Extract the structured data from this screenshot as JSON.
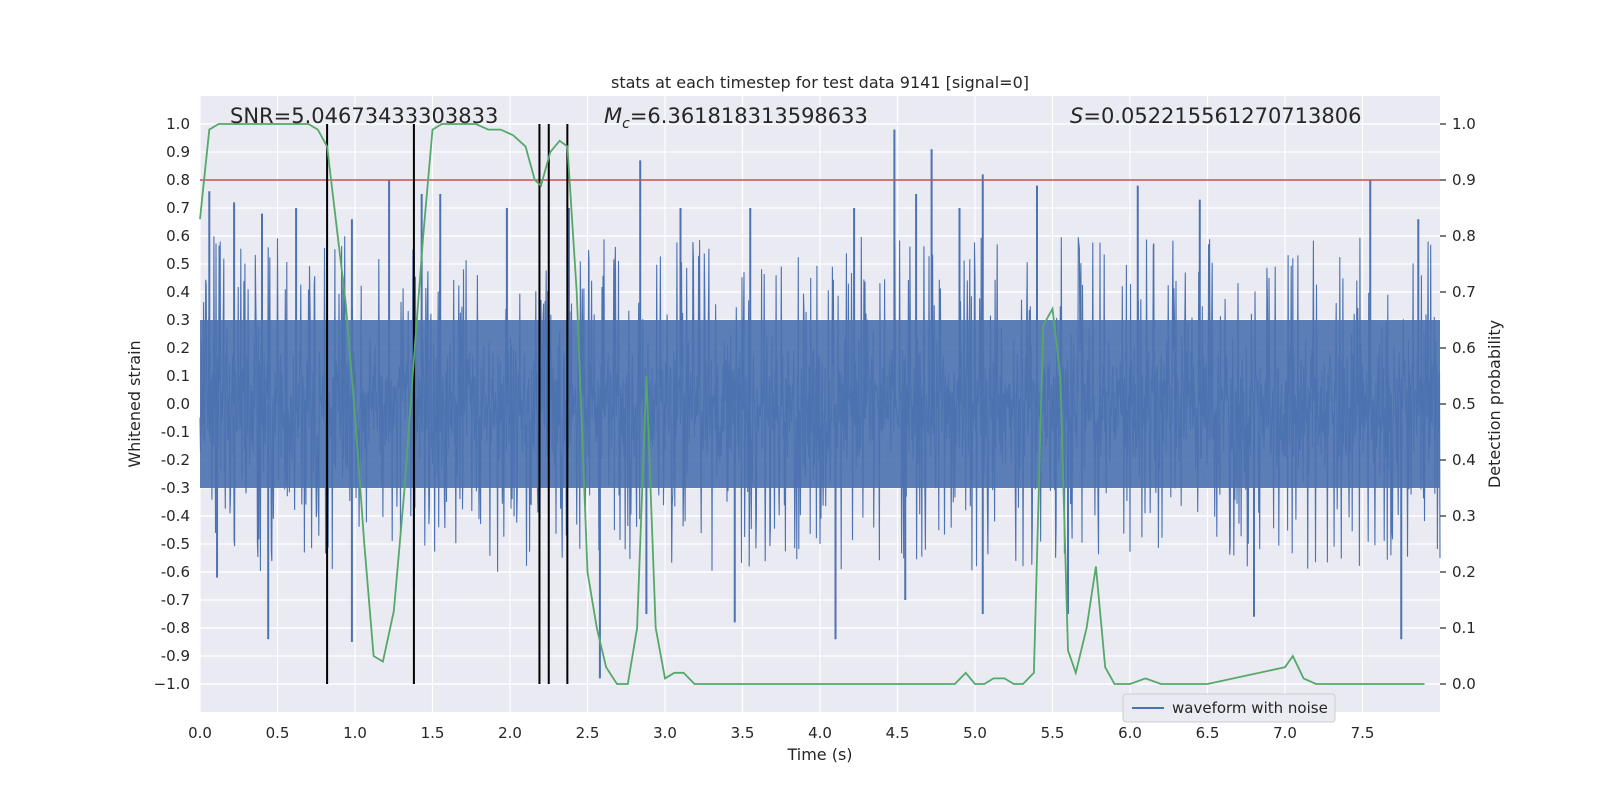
{
  "chart_data": {
    "type": "line",
    "title": "stats at each timestep for test data 9141 [signal=0]",
    "xlabel": "Time (s)",
    "ylabel": "Whitened strain",
    "y2label": "Detection probability",
    "xlim": [
      0.0,
      8.0
    ],
    "ylim": [
      -1.1,
      1.1
    ],
    "y2lim": [
      -0.05,
      1.05
    ],
    "xticks": [
      "0.0",
      "0.5",
      "1.0",
      "1.5",
      "2.0",
      "2.5",
      "3.0",
      "3.5",
      "4.0",
      "4.5",
      "5.0",
      "5.5",
      "6.0",
      "6.5",
      "7.0",
      "7.5"
    ],
    "yticks": [
      "1.0",
      "0.9",
      "0.8",
      "0.7",
      "0.6",
      "0.5",
      "0.4",
      "0.3",
      "0.2",
      "0.1",
      "0.0",
      "-0.1",
      "-0.2",
      "-0.3",
      "-0.4",
      "-0.5",
      "-0.6",
      "-0.7",
      "-0.8",
      "-0.9",
      "−1.0"
    ],
    "y2ticks": [
      "1.0",
      "0.9",
      "0.8",
      "0.7",
      "0.6",
      "0.5",
      "0.4",
      "0.3",
      "0.2",
      "0.1",
      "0.0"
    ],
    "annotations": {
      "snr": "SNR=5.04673433303833",
      "mc_symbol": "M",
      "mc_subscript": "c",
      "mc_value": "=6.361818313598633",
      "s_symbol": "S",
      "s_value": "=0.052215561270713806"
    },
    "legend": {
      "label": "waveform with noise",
      "placement": "lower-right"
    },
    "threshold": {
      "value": 0.9,
      "axis": "y2",
      "color": "#c44e52"
    },
    "vlines": [
      0.82,
      1.38,
      2.19,
      2.25,
      2.37
    ],
    "series": [
      {
        "name": "waveform with noise",
        "axis": "y",
        "color": "#4c72b0",
        "noise_envelope": [
          -0.3,
          0.3
        ],
        "peaks_up": [
          {
            "x": 0.06,
            "y": 0.76
          },
          {
            "x": 0.22,
            "y": 0.72
          },
          {
            "x": 0.4,
            "y": 0.68
          },
          {
            "x": 0.62,
            "y": 0.7
          },
          {
            "x": 0.98,
            "y": 0.66
          },
          {
            "x": 1.22,
            "y": 0.8
          },
          {
            "x": 1.43,
            "y": 0.75
          },
          {
            "x": 1.55,
            "y": 0.75
          },
          {
            "x": 1.98,
            "y": 0.7
          },
          {
            "x": 2.38,
            "y": 0.7
          },
          {
            "x": 2.84,
            "y": 0.87
          },
          {
            "x": 3.1,
            "y": 0.7
          },
          {
            "x": 3.55,
            "y": 0.7
          },
          {
            "x": 4.22,
            "y": 0.7
          },
          {
            "x": 4.48,
            "y": 0.98
          },
          {
            "x": 4.62,
            "y": 0.75
          },
          {
            "x": 4.72,
            "y": 0.91
          },
          {
            "x": 4.9,
            "y": 0.7
          },
          {
            "x": 5.05,
            "y": 0.82
          },
          {
            "x": 5.4,
            "y": 0.78
          },
          {
            "x": 6.05,
            "y": 0.78
          },
          {
            "x": 6.45,
            "y": 0.73
          },
          {
            "x": 7.55,
            "y": 0.8
          },
          {
            "x": 7.86,
            "y": 0.66
          }
        ],
        "peaks_down": [
          {
            "x": 0.11,
            "y": -0.62
          },
          {
            "x": 0.44,
            "y": -0.84
          },
          {
            "x": 0.98,
            "y": -0.85
          },
          {
            "x": 1.38,
            "y": -0.66
          },
          {
            "x": 2.58,
            "y": -0.98
          },
          {
            "x": 2.88,
            "y": -0.75
          },
          {
            "x": 3.45,
            "y": -0.78
          },
          {
            "x": 4.1,
            "y": -0.84
          },
          {
            "x": 4.55,
            "y": -0.7
          },
          {
            "x": 5.05,
            "y": -0.75
          },
          {
            "x": 5.6,
            "y": -0.75
          },
          {
            "x": 6.8,
            "y": -0.76
          },
          {
            "x": 7.75,
            "y": -0.84
          }
        ]
      },
      {
        "name": "detection probability",
        "axis": "y2",
        "color": "#55a868",
        "x": [
          0.0,
          0.06,
          0.12,
          0.2,
          0.3,
          0.4,
          0.5,
          0.6,
          0.7,
          0.76,
          0.82,
          0.88,
          0.94,
          1.0,
          1.06,
          1.12,
          1.18,
          1.25,
          1.32,
          1.38,
          1.44,
          1.5,
          1.56,
          1.62,
          1.7,
          1.78,
          1.86,
          1.94,
          2.02,
          2.1,
          2.16,
          2.2,
          2.26,
          2.32,
          2.37,
          2.43,
          2.5,
          2.56,
          2.62,
          2.69,
          2.76,
          2.82,
          2.88,
          2.94,
          3.0,
          3.06,
          3.12,
          3.19,
          3.25,
          3.31,
          3.5,
          3.8,
          4.0,
          4.2,
          4.4,
          4.5,
          4.6,
          4.7,
          4.8,
          4.87,
          4.94,
          5.0,
          5.06,
          5.12,
          5.19,
          5.25,
          5.31,
          5.38,
          5.44,
          5.5,
          5.55,
          5.6,
          5.65,
          5.72,
          5.78,
          5.84,
          5.9,
          6.0,
          6.1,
          6.2,
          6.3,
          6.5,
          7.0,
          7.05,
          7.12,
          7.2,
          7.26,
          7.3,
          7.5,
          7.9
        ],
        "y": [
          0.83,
          0.99,
          1.0,
          1.0,
          1.0,
          1.0,
          1.0,
          1.0,
          1.0,
          0.99,
          0.96,
          0.82,
          0.68,
          0.48,
          0.25,
          0.05,
          0.04,
          0.13,
          0.35,
          0.58,
          0.8,
          0.99,
          1.0,
          1.0,
          1.0,
          1.0,
          0.99,
          0.99,
          0.98,
          0.96,
          0.9,
          0.89,
          0.95,
          0.97,
          0.96,
          0.7,
          0.2,
          0.1,
          0.03,
          0.0,
          0.0,
          0.1,
          0.55,
          0.1,
          0.01,
          0.02,
          0.02,
          0.0,
          0.0,
          0.0,
          0.0,
          0.0,
          0.0,
          0.0,
          0.0,
          0.0,
          0.0,
          0.0,
          0.0,
          0.0,
          0.02,
          0.0,
          0.0,
          0.01,
          0.01,
          0.0,
          0.0,
          0.02,
          0.64,
          0.67,
          0.55,
          0.06,
          0.02,
          0.1,
          0.21,
          0.03,
          0.0,
          0.0,
          0.01,
          0.0,
          0.0,
          0.0,
          0.03,
          0.05,
          0.01,
          0.0,
          0.0,
          0.0,
          0.0,
          0.0
        ]
      }
    ]
  }
}
